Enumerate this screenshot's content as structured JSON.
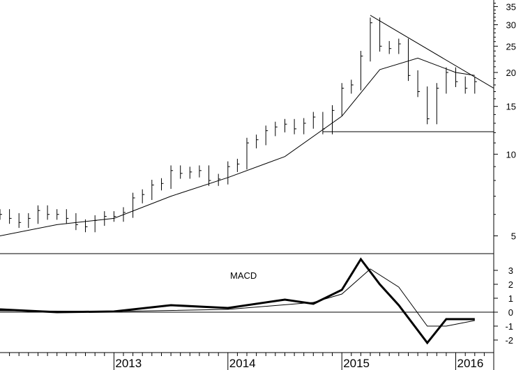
{
  "chart_data": [
    {
      "type": "ohlc",
      "yscale": "log",
      "ylim": [
        4.3,
        37
      ],
      "yticks": [
        5,
        10,
        15,
        20,
        25,
        30,
        35
      ],
      "xticks": [
        "2013",
        "2014",
        "2015",
        "2016"
      ],
      "x_range": [
        "2012-01",
        "2016-05"
      ],
      "grid": false,
      "series": [
        {
          "role": "weekly_price",
          "points": [
            [
              "2012-01",
              6.0
            ],
            [
              "2012-02",
              5.8
            ],
            [
              "2012-03",
              5.6
            ],
            [
              "2012-04",
              5.8
            ],
            [
              "2012-05",
              6.2
            ],
            [
              "2012-06",
              6.0
            ],
            [
              "2012-07",
              6.0
            ],
            [
              "2012-08",
              5.8
            ],
            [
              "2012-09",
              5.5
            ],
            [
              "2012-10",
              5.4
            ],
            [
              "2012-11",
              5.7
            ],
            [
              "2012-12",
              5.9
            ],
            [
              "2013-01",
              5.9
            ],
            [
              "2013-02",
              6.1
            ],
            [
              "2013-03",
              6.9
            ],
            [
              "2013-04",
              7.1
            ],
            [
              "2013-05",
              7.7
            ],
            [
              "2013-06",
              7.8
            ],
            [
              "2013-07",
              8.7
            ],
            [
              "2013-08",
              8.5
            ],
            [
              "2013-09",
              8.6
            ],
            [
              "2013-10",
              8.7
            ],
            [
              "2013-11",
              8.0
            ],
            [
              "2013-12",
              8.1
            ],
            [
              "2014-01",
              9.0
            ],
            [
              "2014-02",
              9.2
            ],
            [
              "2014-03",
              11.0
            ],
            [
              "2014-04",
              11.3
            ],
            [
              "2014-05",
              12.2
            ],
            [
              "2014-06",
              12.6
            ],
            [
              "2014-07",
              12.9
            ],
            [
              "2014-08",
              12.4
            ],
            [
              "2014-09",
              13.0
            ],
            [
              "2014-10",
              13.7
            ],
            [
              "2014-11",
              12.4
            ],
            [
              "2014-12",
              14.5
            ],
            [
              "2015-01",
              17.5
            ],
            [
              "2015-02",
              18.0
            ],
            [
              "2015-03",
              23.0
            ],
            [
              "2015-04",
              30.5
            ],
            [
              "2015-05",
              25.0
            ],
            [
              "2015-06",
              24.5
            ],
            [
              "2015-07",
              25.5
            ],
            [
              "2015-08",
              19.5
            ],
            [
              "2015-09",
              17.0
            ],
            [
              "2015-10",
              13.5
            ],
            [
              "2015-11",
              17.5
            ],
            [
              "2015-12",
              20.0
            ],
            [
              "2016-01",
              18.5
            ],
            [
              "2016-02",
              17.5
            ],
            [
              "2016-03",
              18.5
            ]
          ]
        },
        {
          "role": "moving_average",
          "points": [
            [
              "2012-01",
              5.0
            ],
            [
              "2012-07",
              5.5
            ],
            [
              "2013-01",
              5.8
            ],
            [
              "2013-07",
              7.0
            ],
            [
              "2014-01",
              8.2
            ],
            [
              "2014-07",
              9.8
            ],
            [
              "2015-01",
              13.8
            ],
            [
              "2015-05",
              20.5
            ],
            [
              "2015-09",
              22.6
            ],
            [
              "2016-01",
              20.0
            ],
            [
              "2016-03",
              19.5
            ]
          ]
        }
      ],
      "trendlines": [
        {
          "points": [
            [
              "2015-04",
              32.5
            ],
            [
              "2016-05",
              17.5
            ]
          ]
        },
        {
          "points": [
            [
              "2014-11",
              12.1
            ],
            [
              "2016-05",
              12.1
            ]
          ]
        }
      ]
    },
    {
      "type": "line",
      "title": "MACD",
      "ylim": [
        -2.8,
        4.1
      ],
      "yticks": [
        -2,
        -1,
        0,
        1,
        2,
        3
      ],
      "zero_line": true,
      "series": [
        {
          "role": "macd",
          "points": [
            [
              "2012-01",
              0.2
            ],
            [
              "2012-07",
              0.0
            ],
            [
              "2013-01",
              0.05
            ],
            [
              "2013-07",
              0.5
            ],
            [
              "2014-01",
              0.3
            ],
            [
              "2014-07",
              0.9
            ],
            [
              "2014-10",
              0.6
            ],
            [
              "2015-01",
              1.6
            ],
            [
              "2015-03",
              3.8
            ],
            [
              "2015-05",
              2.0
            ],
            [
              "2015-07",
              0.5
            ],
            [
              "2015-10",
              -2.2
            ],
            [
              "2015-12",
              -0.5
            ],
            [
              "2016-03",
              -0.5
            ]
          ]
        },
        {
          "role": "signal",
          "points": [
            [
              "2012-01",
              0.1
            ],
            [
              "2013-01",
              0.05
            ],
            [
              "2014-01",
              0.2
            ],
            [
              "2014-10",
              0.7
            ],
            [
              "2015-01",
              1.3
            ],
            [
              "2015-04",
              3.1
            ],
            [
              "2015-07",
              1.8
            ],
            [
              "2015-10",
              -1.0
            ],
            [
              "2015-12",
              -1.0
            ],
            [
              "2016-03",
              -0.6
            ]
          ]
        }
      ]
    }
  ]
}
